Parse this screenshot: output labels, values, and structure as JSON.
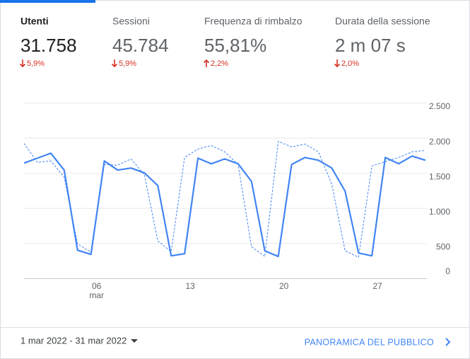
{
  "metrics": [
    {
      "label": "Utenti",
      "value": "31.758",
      "change": "5,9%",
      "trend": "down",
      "active": true
    },
    {
      "label": "Sessioni",
      "value": "45.784",
      "change": "5,9%",
      "trend": "down",
      "active": false
    },
    {
      "label": "Frequenza di rimbalzo",
      "value": "55,81%",
      "change": "2,2%",
      "trend": "up",
      "active": false
    },
    {
      "label": "Durata della sessione",
      "value": "2 m 07 s",
      "change": "2,0%",
      "trend": "down",
      "active": false
    }
  ],
  "chart_data": {
    "type": "line",
    "categories": [
      null,
      null,
      null,
      null,
      null,
      "06",
      null,
      null,
      null,
      null,
      null,
      null,
      "13",
      null,
      null,
      null,
      null,
      null,
      null,
      "20",
      null,
      null,
      null,
      null,
      null,
      null,
      "27",
      null,
      null,
      null,
      null
    ],
    "x_sublabel": "mar",
    "series": [
      {
        "color": "#4285f4",
        "style": "solid",
        "values": [
          1640,
          1710,
          1780,
          1540,
          400,
          340,
          1670,
          1540,
          1570,
          1500,
          1320,
          320,
          350,
          1710,
          1630,
          1700,
          1630,
          1380,
          390,
          310,
          1620,
          1720,
          1680,
          1570,
          1240,
          360,
          320,
          1720,
          1630,
          1740,
          1680
        ]
      },
      {
        "color": "#4285f4",
        "style": "dashed",
        "values": [
          1920,
          1650,
          1670,
          1440,
          490,
          370,
          1620,
          1610,
          1700,
          1470,
          530,
          380,
          1720,
          1840,
          1890,
          1800,
          1620,
          450,
          310,
          1950,
          1870,
          1910,
          1800,
          1340,
          390,
          300,
          1600,
          1660,
          1720,
          1800,
          1820
        ]
      }
    ],
    "ylim": [
      0,
      2500
    ],
    "yticks": [
      0,
      500,
      {
        "value": 1000,
        "label": "1.000"
      },
      {
        "value": 1500,
        "label": "1.500"
      },
      {
        "value": 2000,
        "label": "2.000"
      },
      {
        "value": 2500,
        "label": "2.500"
      }
    ],
    "grid": true
  },
  "footer": {
    "date_range": "1 mar 2022 - 31 mar 2022",
    "link": "PANORAMICA DEL PUBBLICO"
  }
}
